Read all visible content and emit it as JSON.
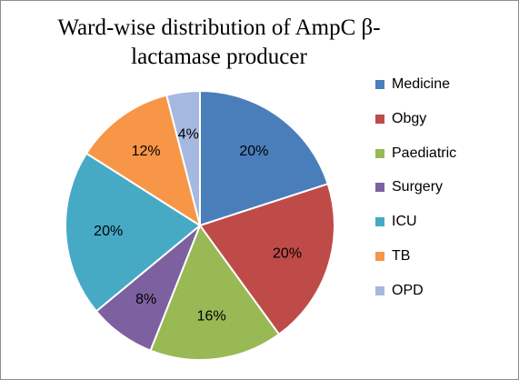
{
  "chart_data": {
    "type": "pie",
    "title": "Ward-wise distribution of AmpC β-lactamase producer",
    "title_lines": [
      "Ward-wise distribution of AmpC β-",
      "lactamase producer"
    ],
    "categories": [
      "Medicine",
      "Obgy",
      "Paediatric",
      "Surgery",
      "ICU",
      "TB",
      "OPD"
    ],
    "values": [
      20,
      20,
      16,
      8,
      20,
      12,
      4
    ],
    "data_labels": [
      "20%",
      "20%",
      "16%",
      "8%",
      "20%",
      "12%",
      "4%"
    ],
    "colors": [
      "#4a7ebb",
      "#be4b48",
      "#98b954",
      "#7d60a0",
      "#46aac5",
      "#f79646",
      "#a5b8df"
    ],
    "legend_position": "right",
    "start_angle": "12 o'clock, clockwise"
  }
}
